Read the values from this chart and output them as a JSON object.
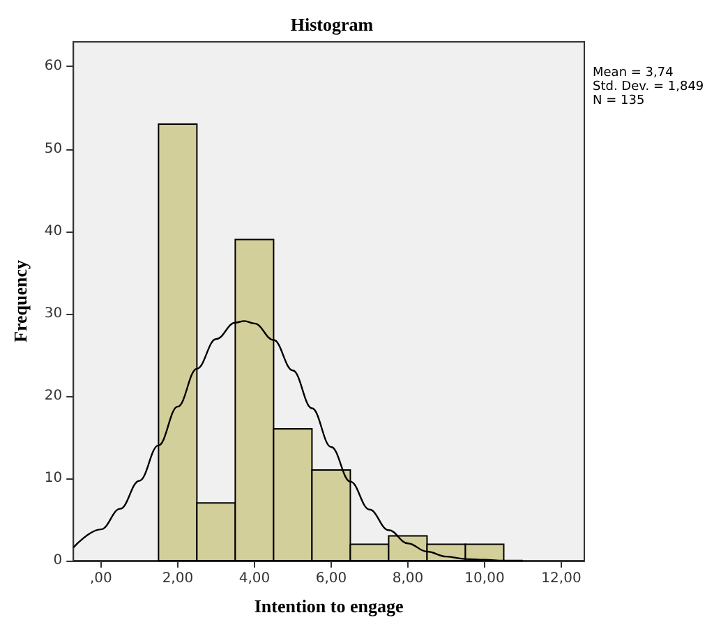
{
  "chart_data": {
    "type": "histogram",
    "title": "Histogram",
    "xlabel": "Intention to engage",
    "ylabel": "Frequency",
    "annotations": [
      "Mean = 3,74",
      "Std. Dev. = 1,849",
      "N = 135"
    ],
    "bins": [
      1.5,
      2.5,
      3.5,
      4.5,
      5.5,
      6.5,
      7.5,
      8.5,
      9.5,
      10.5
    ],
    "values": [
      53,
      7,
      39,
      16,
      11,
      2,
      3,
      2,
      2
    ],
    "color": "#d3cf9a",
    "series": [
      {
        "type": "line",
        "color": "#000000",
        "x": [
          -0.72,
          0,
          0.5,
          1,
          1.5,
          2,
          2.5,
          3,
          3.5,
          3.74,
          4,
          4.5,
          5,
          5.5,
          6,
          6.5,
          7,
          7.5,
          8,
          8.5,
          9,
          9.5,
          10,
          10.5,
          11
        ],
        "values": [
          1.6,
          3.8,
          6.3,
          9.7,
          14.0,
          18.7,
          23.3,
          26.9,
          28.9,
          29.1,
          28.8,
          26.8,
          23.1,
          18.5,
          13.8,
          9.6,
          6.2,
          3.7,
          2.1,
          1.1,
          0.5,
          0.2,
          0.1,
          0.0,
          0.0
        ]
      }
    ],
    "xlim": [
      -0.72,
      12.6
    ],
    "ylim": [
      0,
      63
    ],
    "xticks": [
      {
        "value": 0,
        "label": ",00"
      },
      {
        "value": 2,
        "label": "2,00"
      },
      {
        "value": 4,
        "label": "4,00"
      },
      {
        "value": 6,
        "label": "6,00"
      },
      {
        "value": 8,
        "label": "8,00"
      },
      {
        "value": 10,
        "label": "10,00"
      },
      {
        "value": 12,
        "label": "12,00"
      }
    ],
    "yticks": [
      0,
      10,
      20,
      30,
      40,
      50,
      60
    ],
    "grid": false,
    "marker": "none"
  }
}
